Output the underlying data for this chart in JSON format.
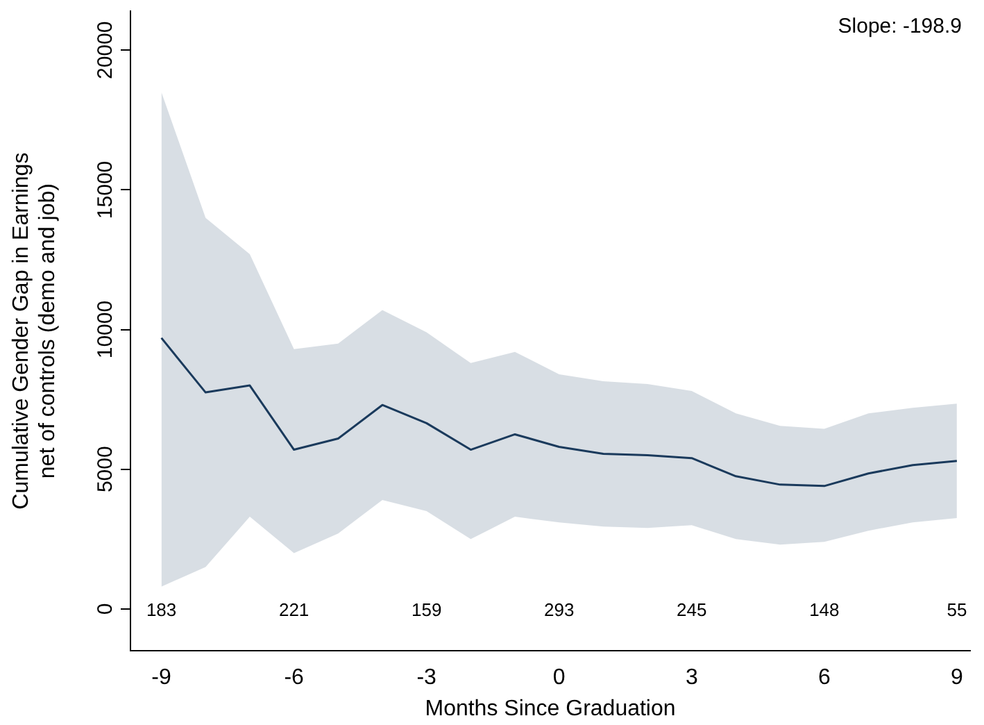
{
  "chart_data": {
    "type": "line",
    "xlabel": "Months Since Graduation",
    "ylabel": "Cumulative Gender Gap in Earnings\nnet of controls (demo and job)",
    "x": [
      -9,
      -8,
      -7,
      -6,
      -5,
      -4,
      -3,
      -2,
      -1,
      0,
      1,
      2,
      3,
      4,
      5,
      6,
      7,
      8,
      9
    ],
    "series": [
      {
        "color": "#1a3a5c",
        "values": [
          9700,
          7750,
          8000,
          5700,
          6100,
          7300,
          6650,
          5700,
          6250,
          5800,
          5550,
          5500,
          5400,
          4750,
          4450,
          4400,
          4850,
          5150,
          5300
        ],
        "upper": [
          18500,
          14000,
          12700,
          9300,
          9500,
          10700,
          9900,
          8800,
          9200,
          8400,
          8150,
          8050,
          7800,
          7000,
          6550,
          6450,
          7000,
          7200,
          7350
        ],
        "lower": [
          800,
          1500,
          3300,
          2000,
          2700,
          3900,
          3500,
          2500,
          3300,
          3100,
          2950,
          2900,
          3000,
          2500,
          2300,
          2400,
          2800,
          3100,
          3250
        ]
      }
    ],
    "xlim": [
      -9.7,
      9.3
    ],
    "ylim": [
      -1500,
      21400
    ],
    "xticks": [
      -9,
      -6,
      -3,
      0,
      3,
      6,
      9
    ],
    "yticks": [
      0,
      5000,
      10000,
      15000,
      20000
    ],
    "grid": false,
    "legend": false,
    "marker": "none",
    "line_style": "solid",
    "annotations": [
      "Slope: -198.9",
      "183",
      "221",
      "159",
      "293",
      "245",
      "148",
      "55"
    ]
  }
}
